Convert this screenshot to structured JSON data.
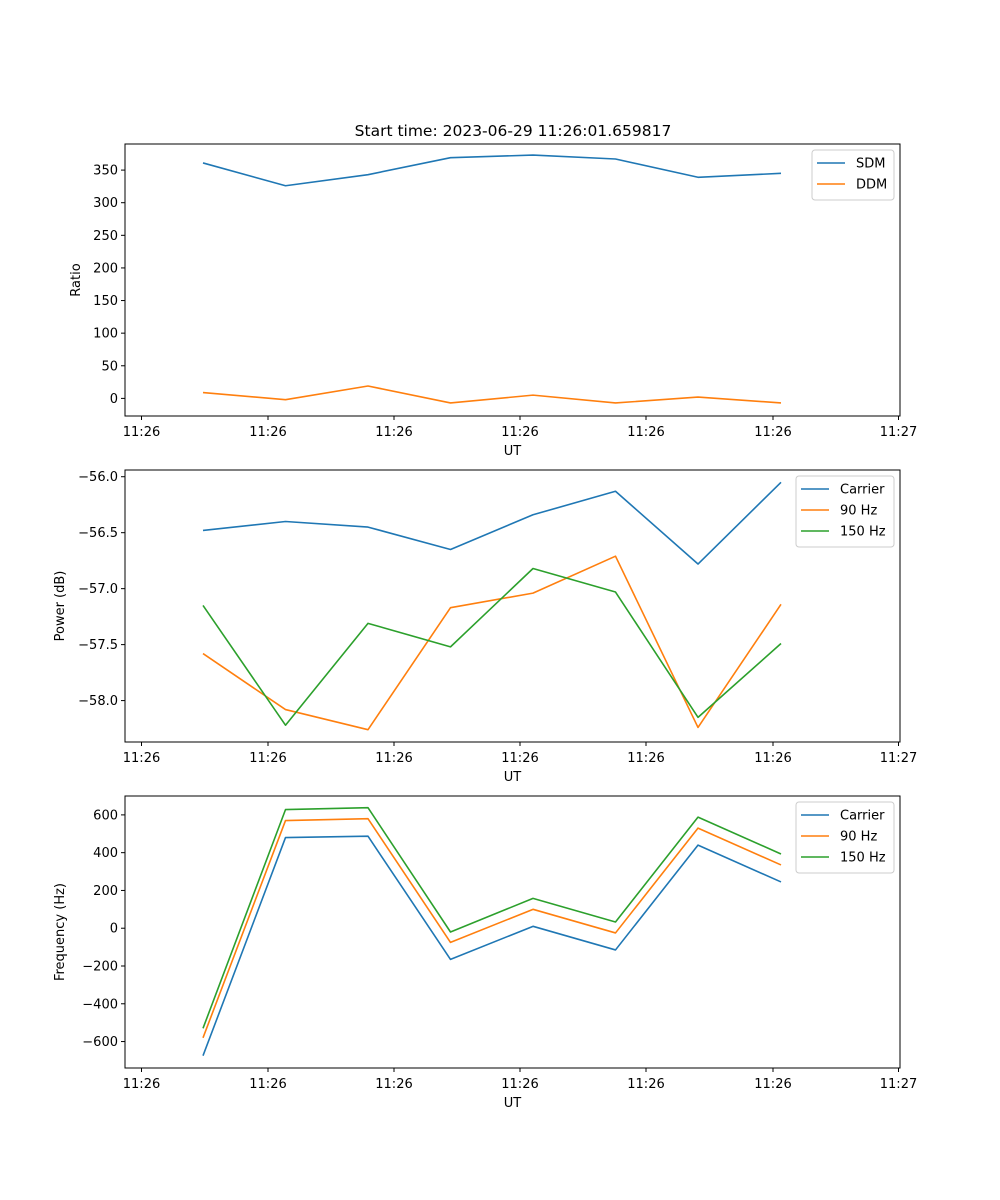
{
  "chart_data": [
    {
      "type": "line",
      "title": "Start time: 2023-06-29 11:26:01.659817",
      "xlabel": "UT",
      "ylabel": "Ratio",
      "x_tick_labels": [
        "11:26",
        "11:26",
        "11:26",
        "11:26",
        "11:26",
        "11:26",
        "11:27"
      ],
      "y_ticks": [
        0,
        50,
        100,
        150,
        200,
        250,
        300,
        350
      ],
      "ylim": [
        -27,
        390
      ],
      "legend_position": "upper right",
      "series": [
        {
          "name": "SDM",
          "color": "#1f77b4",
          "values": [
            361,
            326,
            343,
            369,
            373,
            367,
            339,
            345
          ]
        },
        {
          "name": "DDM",
          "color": "#ff7f0e",
          "values": [
            9,
            -2,
            19,
            -7,
            5,
            -7,
            2,
            -7
          ]
        }
      ]
    },
    {
      "type": "line",
      "title": "",
      "xlabel": "UT",
      "ylabel": "Power (dB)",
      "x_tick_labels": [
        "11:26",
        "11:26",
        "11:26",
        "11:26",
        "11:26",
        "11:26",
        "11:27"
      ],
      "y_ticks": [
        -58.0,
        -57.5,
        -57.0,
        -56.5,
        -56.0
      ],
      "y_tick_labels": [
        "−58.0",
        "−57.5",
        "−57.0",
        "−56.5",
        "−56.0"
      ],
      "ylim": [
        -58.37,
        -55.94
      ],
      "legend_position": "upper right",
      "series": [
        {
          "name": "Carrier",
          "color": "#1f77b4",
          "values": [
            -56.48,
            -56.4,
            -56.45,
            -56.65,
            -56.34,
            -56.13,
            -56.78,
            -56.05
          ]
        },
        {
          "name": "90 Hz",
          "color": "#ff7f0e",
          "values": [
            -57.58,
            -58.08,
            -58.26,
            -57.17,
            -57.04,
            -56.71,
            -58.24,
            -57.14
          ]
        },
        {
          "name": "150 Hz",
          "color": "#2ca02c",
          "values": [
            -57.15,
            -58.22,
            -57.31,
            -57.52,
            -56.82,
            -57.03,
            -58.15,
            -57.49
          ]
        }
      ]
    },
    {
      "type": "line",
      "title": "",
      "xlabel": "UT",
      "ylabel": "Frequency (Hz)",
      "x_tick_labels": [
        "11:26",
        "11:26",
        "11:26",
        "11:26",
        "11:26",
        "11:26",
        "11:27"
      ],
      "y_ticks": [
        -600,
        -400,
        -200,
        0,
        200,
        400,
        600
      ],
      "y_tick_labels": [
        "−600",
        "−400",
        "−200",
        "0",
        "200",
        "400",
        "600"
      ],
      "ylim": [
        -740,
        700
      ],
      "legend_position": "upper right",
      "series": [
        {
          "name": "Carrier",
          "color": "#1f77b4",
          "values": [
            -675,
            480,
            487,
            -165,
            10,
            -115,
            440,
            245
          ]
        },
        {
          "name": "90 Hz",
          "color": "#ff7f0e",
          "values": [
            -580,
            570,
            580,
            -75,
            100,
            -25,
            530,
            335
          ]
        },
        {
          "name": "150 Hz",
          "color": "#2ca02c",
          "values": [
            -530,
            628,
            638,
            -20,
            158,
            33,
            588,
            393
          ]
        }
      ]
    }
  ]
}
